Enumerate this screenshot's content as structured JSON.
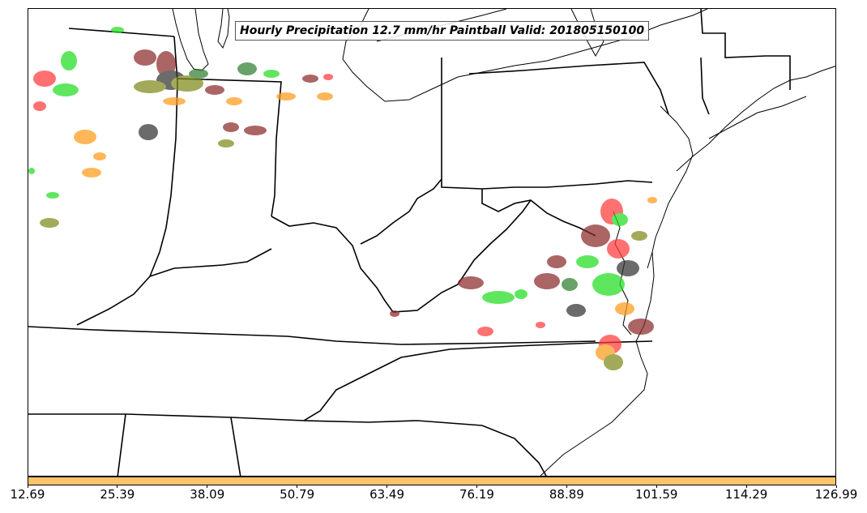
{
  "title": "Hourly Precipitation 12.7 mm/hr Paintball Valid: 201805150100",
  "colorbar": {
    "color": "#ffc36b",
    "ticks": [
      "12.69",
      "25.39",
      "38.09",
      "50.79",
      "63.49",
      "76.19",
      "88.89",
      "101.59",
      "114.29",
      "126.99"
    ]
  },
  "member_colors": [
    "#ff3b3b",
    "#22dd22",
    "#8b2a2a",
    "#ff9a1a",
    "#7f8a1a",
    "#333333",
    "#2f7f2f"
  ]
}
